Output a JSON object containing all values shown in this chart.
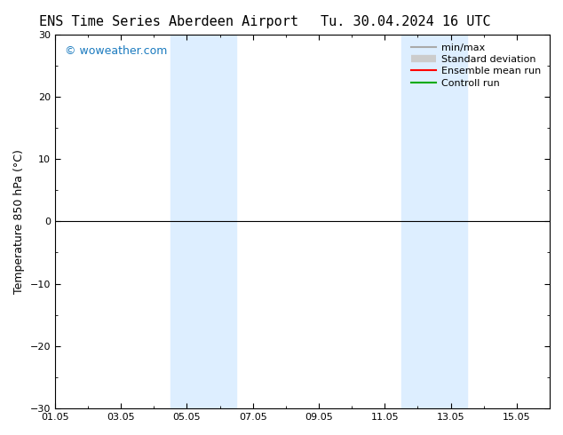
{
  "title_left": "ENS Time Series Aberdeen Airport",
  "title_right": "Tu. 30.04.2024 16 UTC",
  "ylabel": "Temperature 850 hPa (°C)",
  "watermark": "© woweather.com",
  "watermark_color": "#1a7abf",
  "ylim": [
    -30,
    30
  ],
  "yticks": [
    -30,
    -20,
    -10,
    0,
    10,
    20,
    30
  ],
  "xstart": "2024-05-01",
  "xend": "2024-05-16",
  "xtick_labels": [
    "01.05",
    "03.05",
    "05.05",
    "07.05",
    "09.05",
    "11.05",
    "13.05",
    "15.05"
  ],
  "xtick_positions_days": [
    0,
    2,
    4,
    6,
    8,
    10,
    12,
    14
  ],
  "shaded_bands": [
    {
      "start_day": 3.5,
      "end_day": 5.5
    },
    {
      "start_day": 10.5,
      "end_day": 12.5
    }
  ],
  "band_color": "#ddeeff",
  "band_alpha": 1.0,
  "zero_line_color": "#000000",
  "background_color": "#ffffff",
  "legend_items": [
    {
      "label": "min/max",
      "color": "#aaaaaa",
      "lw": 1.5,
      "style": "-"
    },
    {
      "label": "Standard deviation",
      "color": "#cccccc",
      "lw": 6,
      "style": "-"
    },
    {
      "label": "Ensemble mean run",
      "color": "#ff0000",
      "lw": 1.5,
      "style": "-"
    },
    {
      "label": "Controll run",
      "color": "#00aa00",
      "lw": 1.5,
      "style": "-"
    }
  ],
  "title_fontsize": 11,
  "tick_fontsize": 8,
  "ylabel_fontsize": 9,
  "legend_fontsize": 8
}
